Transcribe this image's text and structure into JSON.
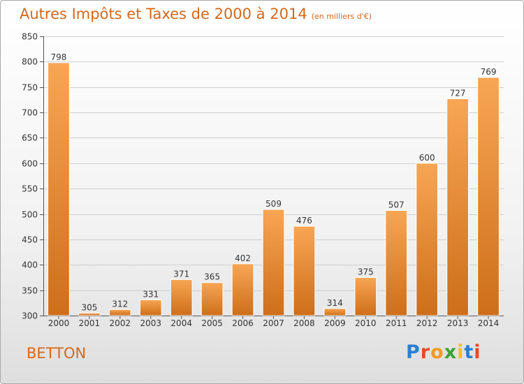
{
  "title": "Autres Impôts et Taxes de 2000 à 2014",
  "subtitle": "(en milliers d'€)",
  "footer": {
    "city": "BETTON",
    "logo": "Proxiti"
  },
  "colors": {
    "bar_light": "#f8a654",
    "bar_dark": "#cd6e1a",
    "text_accent": "#d2691e"
  },
  "chart_data": {
    "type": "bar",
    "title": "Autres Impôts et Taxes de 2000 à 2014",
    "subtitle": "(en milliers d'€)",
    "xlabel": "",
    "ylabel": "",
    "categories": [
      "2000",
      "2001",
      "2002",
      "2003",
      "2004",
      "2005",
      "2006",
      "2007",
      "2008",
      "2009",
      "2010",
      "2011",
      "2012",
      "2013",
      "2014"
    ],
    "values": [
      798,
      305,
      312,
      331,
      371,
      365,
      402,
      509,
      476,
      314,
      375,
      507,
      600,
      727,
      769
    ],
    "ylim": [
      300,
      850
    ],
    "yticks": [
      300,
      350,
      400,
      450,
      500,
      550,
      600,
      650,
      700,
      750,
      800,
      850
    ],
    "grid": true,
    "legend": "none"
  }
}
